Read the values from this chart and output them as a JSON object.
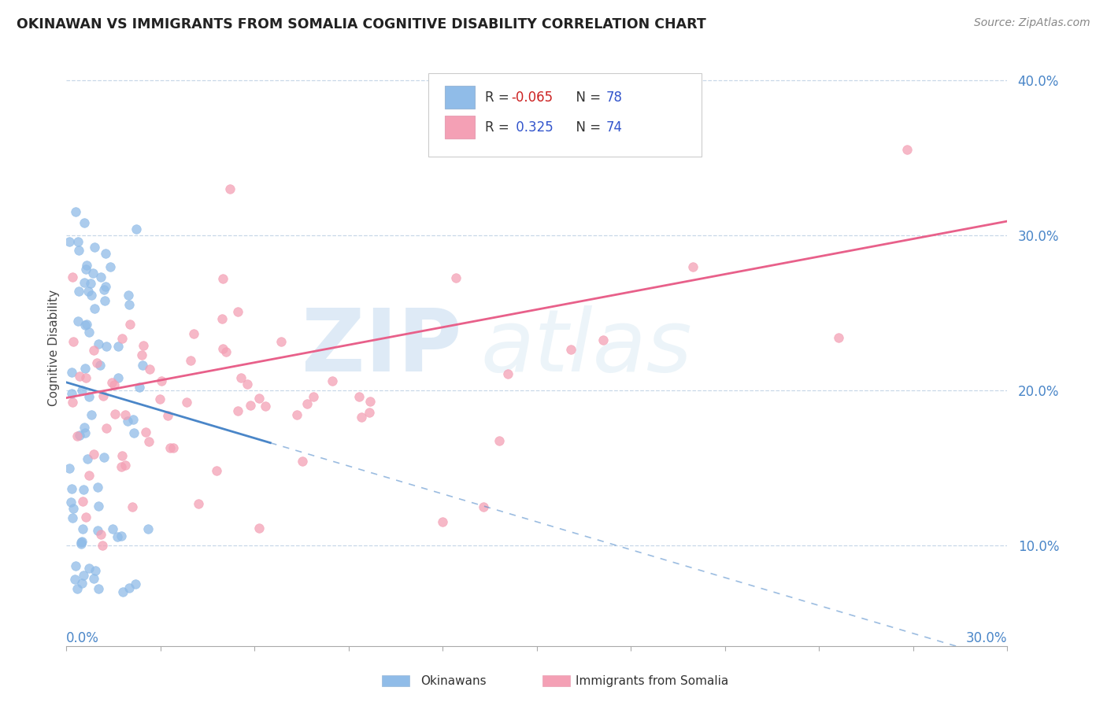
{
  "title": "OKINAWAN VS IMMIGRANTS FROM SOMALIA COGNITIVE DISABILITY CORRELATION CHART",
  "source": "Source: ZipAtlas.com",
  "ylabel": "Cognitive Disability",
  "color_blue": "#90bce8",
  "color_pink": "#f4a0b5",
  "color_line_blue": "#4a86c8",
  "color_line_pink": "#e8608a",
  "color_grid": "#c8d8e8",
  "xmin": 0.0,
  "xmax": 0.3,
  "ymin": 0.035,
  "ymax": 0.42,
  "yticks": [
    0.1,
    0.2,
    0.3,
    0.4
  ],
  "ytick_labels": [
    "10.0%",
    "20.0%",
    "30.0%",
    "40.0%"
  ],
  "r_ok": -0.065,
  "n_ok": 78,
  "r_som": 0.325,
  "n_som": 74
}
